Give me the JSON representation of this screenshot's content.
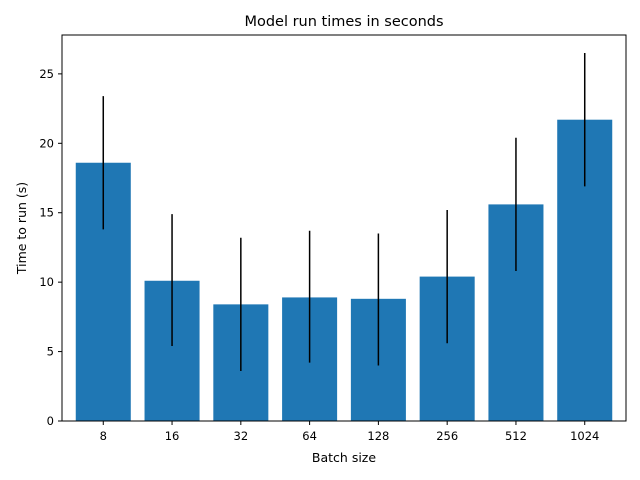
{
  "chart_data": {
    "type": "bar",
    "title": "Model run times in seconds",
    "xlabel": "Batch size",
    "ylabel": "Time to run (s)",
    "categories": [
      "8",
      "16",
      "32",
      "64",
      "128",
      "256",
      "512",
      "1024"
    ],
    "values": [
      18.6,
      10.1,
      8.4,
      8.9,
      8.8,
      10.4,
      15.6,
      21.7
    ],
    "error_low": [
      13.8,
      5.4,
      3.6,
      4.2,
      4.0,
      5.6,
      10.8,
      16.9
    ],
    "error_high": [
      23.4,
      14.9,
      13.2,
      13.7,
      13.5,
      15.2,
      20.4,
      26.5
    ],
    "ylim": [
      0,
      27.8
    ],
    "yticks": [
      0,
      5,
      10,
      15,
      20,
      25
    ],
    "grid": false,
    "colors": {
      "bar": "#1f77b4",
      "errorbar": "#000000",
      "axis": "#000000"
    }
  }
}
